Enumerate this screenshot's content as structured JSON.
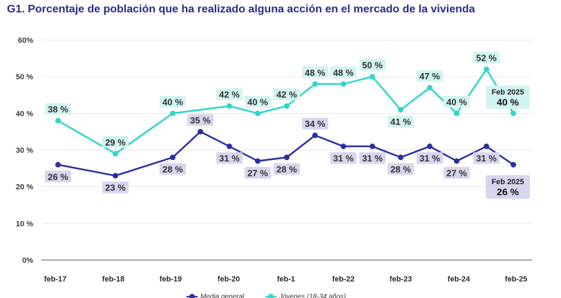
{
  "title": "G1. Porcentaje de población que ha realizado alguna acción en el mercado de la vivienda",
  "colors": {
    "title": "#2a2d8c",
    "general": "#2b2fa3",
    "general_label_bg": "#d6d6ee",
    "young": "#2ed6c9",
    "young_label_bg": "#d2f4f1",
    "grid": "#e6e6e6",
    "axis": "#8c8c8c"
  },
  "chart_data": {
    "type": "line",
    "title": "G1. Porcentaje de población que ha realizado alguna acción en el mercado de la vivienda",
    "ylim": [
      0,
      60
    ],
    "yticks": [
      "0%",
      "10 %",
      "20 %",
      "30 %",
      "40 %",
      "50 %",
      "60%"
    ],
    "xticks": [
      "feb-17",
      "feb-18",
      "feb-19",
      "feb-20",
      "feb-1",
      "feb-22",
      "feb-23",
      "feb-24",
      "feb-25"
    ],
    "legend_position": "bottom",
    "series": [
      {
        "name": "Media general",
        "values": [
          26,
          23,
          28,
          35,
          31,
          27,
          28,
          34,
          31,
          31,
          28,
          31,
          27,
          31,
          26
        ],
        "labels": [
          "26 %",
          "23 %",
          "28 %",
          "35 %",
          "31 %",
          "27 %",
          "28 %",
          "34 %",
          "31 %",
          "31 %",
          "28 %",
          "31 %",
          "27 %",
          "31 %",
          "26 %"
        ]
      },
      {
        "name": "Jóvenes (18-34 años)",
        "values": [
          38,
          29,
          40,
          42,
          40,
          42,
          48,
          48,
          50,
          41,
          47,
          40,
          52,
          40
        ],
        "labels": [
          "38 %",
          "29 %",
          "40 %",
          "42 %",
          "40 %",
          "42 %",
          "48 %",
          "48 %",
          "50 %",
          "41 %",
          "47 %",
          "40 %",
          "52 %",
          "40 %"
        ]
      }
    ],
    "callouts": [
      {
        "series": "Jóvenes (18-34 años)",
        "line1": "Feb 2025",
        "line2": "40 %"
      },
      {
        "series": "Media general",
        "line1": "Feb 2025",
        "line2": "26 %"
      }
    ]
  }
}
